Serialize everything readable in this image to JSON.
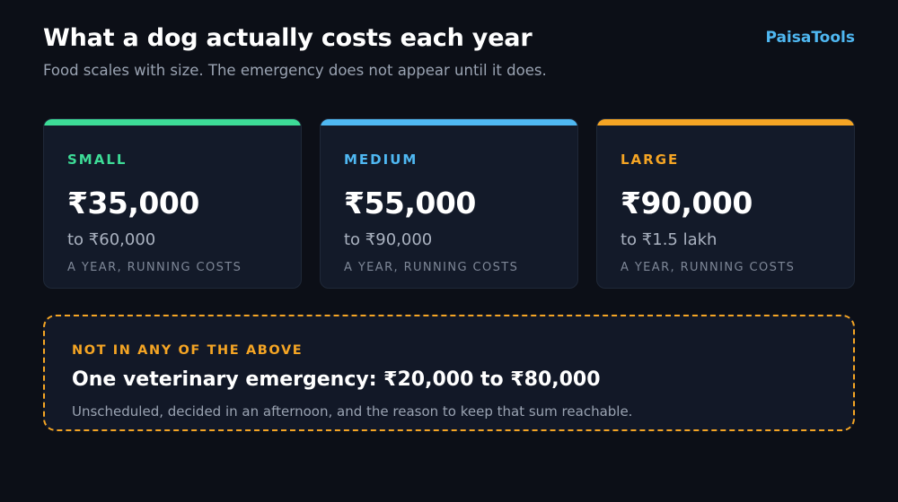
{
  "header": {
    "title": "What a dog actually costs each year",
    "subtitle": "Food scales with size. The emergency does not appear until it does.",
    "brand": "PaisaTools"
  },
  "cards": [
    {
      "label": "SMALL",
      "amount": "₹35,000",
      "range": "to ₹60,000",
      "note": "A YEAR, RUNNING COSTS",
      "accent": "#3ddc97"
    },
    {
      "label": "MEDIUM",
      "amount": "₹55,000",
      "range": "to ₹90,000",
      "note": "A YEAR, RUNNING COSTS",
      "accent": "#4fb8f2"
    },
    {
      "label": "LARGE",
      "amount": "₹90,000",
      "range": "to ₹1.5 lakh",
      "note": "A YEAR, RUNNING COSTS",
      "accent": "#f5a524"
    }
  ],
  "callout": {
    "kicker": "NOT IN ANY OF THE ABOVE",
    "headline": "One veterinary emergency: ₹20,000 to ₹80,000",
    "description": "Unscheduled, decided in an afternoon, and the reason to keep that sum reachable.",
    "accent": "#f5a524"
  },
  "colors": {
    "background": "#0c0f17",
    "card": "#131a29",
    "brand": "#4fb8f2"
  }
}
